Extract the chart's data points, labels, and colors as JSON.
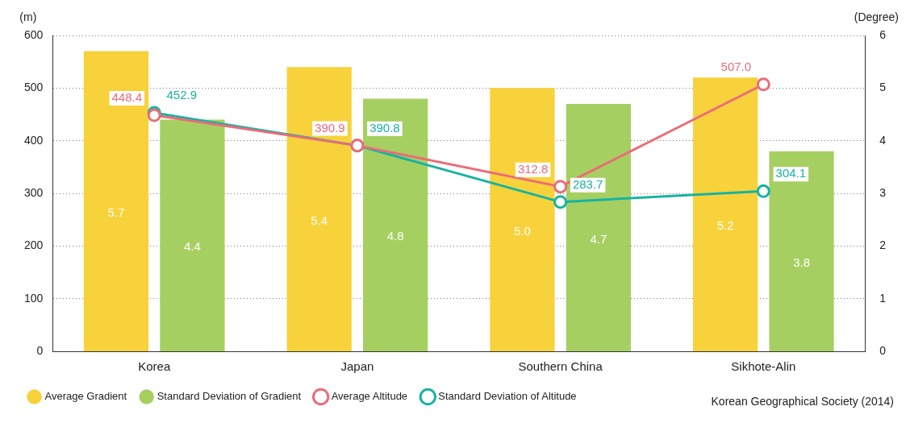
{
  "chart_data": {
    "type": "bar",
    "categories": [
      "Korea",
      "Japan",
      "Southern China",
      "Sikhote-Alin"
    ],
    "series": [
      {
        "name": "Average Gradient",
        "axis": "y2",
        "color": "#f7d23a",
        "values": [
          5.7,
          5.4,
          5.0,
          5.2
        ],
        "value_labels": [
          "5.7",
          "5.4",
          "5.0",
          "5.2"
        ]
      },
      {
        "name": "Standard Deviation of Gradient",
        "axis": "y2",
        "color": "#a6cf62",
        "values": [
          4.4,
          4.8,
          4.7,
          3.8
        ]
      },
      {
        "name": "Average Altitude",
        "type": "line",
        "axis": "y",
        "color": "#ec6b78",
        "values": [
          448.4,
          390.9,
          312.8,
          507.0
        ],
        "value_labels": [
          "448.4",
          "390.9",
          "312.8",
          "507.0"
        ]
      },
      {
        "name": "Standard Deviation of Altitude",
        "type": "line",
        "axis": "y",
        "color": "#17b3a3",
        "values": [
          452.9,
          390.8,
          283.7,
          304.1
        ]
      }
    ],
    "ylabel": "(m)",
    "y2label": "(Degree)",
    "ylim": [
      0,
      600
    ],
    "yticks": [
      0,
      100,
      200,
      300,
      400,
      500,
      600
    ],
    "y2lim": [
      0,
      6
    ],
    "y2ticks": [
      0,
      1,
      2,
      3,
      4,
      5,
      6
    ],
    "grid": "y",
    "legend": "bottom",
    "marker": "circle",
    "data_labels": true,
    "annotations": [
      "Korean Geographical Society (2014)"
    ]
  }
}
